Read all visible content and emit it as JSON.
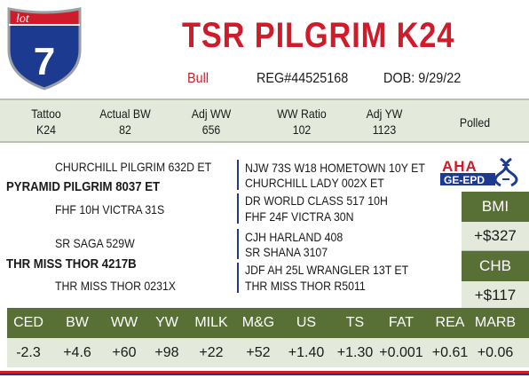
{
  "lot": {
    "label": "lot",
    "number": "7"
  },
  "header": {
    "title": "TSR PILGRIM K24",
    "sex": "Bull",
    "reg": "REG#44525168",
    "dob": "DOB: 9/29/22"
  },
  "info": {
    "tattoo_label": "Tattoo",
    "tattoo": "K24",
    "actual_bw_label": "Actual BW",
    "actual_bw": "82",
    "adj_ww_label": "Adj WW",
    "adj_ww": "656",
    "ww_ratio_label": "WW Ratio",
    "ww_ratio": "102",
    "adj_yw_label": "Adj YW",
    "adj_yw": "1123",
    "polled": "Polled"
  },
  "pedigree": {
    "sire": "PYRAMID PILGRIM 8037 ET",
    "sire_sire": "CHURCHILL PILGRIM 632D ET",
    "sire_dam": "FHF 10H VICTRA 31S",
    "sire_sire_sire": "NJW 73S W18 HOMETOWN 10Y ET",
    "sire_sire_dam": "CHURCHILL LADY 002X ET",
    "sire_dam_sire": "DR WORLD CLASS 517 10H",
    "sire_dam_dam": "FHF 24F VICTRA 30N",
    "dam": "THR MISS THOR 4217B",
    "dam_sire": "SR SAGA 529W",
    "dam_dam": "THR MISS THOR 0231X",
    "dam_sire_sire": "CJH HARLAND 408",
    "dam_sire_dam": "SR SHANA 3107",
    "dam_dam_sire": "JDF AH 25L WRANGLER 13T ET",
    "dam_dam_dam": "THR MISS THOR R5011"
  },
  "logo": {
    "top": "AHA",
    "bottom": "GE-EPD"
  },
  "indexes": {
    "bmi_label": "BMI",
    "bmi": "+$327",
    "chb_label": "CHB",
    "chb": "+$117"
  },
  "epd": {
    "headers": [
      "CED",
      "BW",
      "WW",
      "YW",
      "MILK",
      "M&G",
      "US",
      "TS",
      "FAT",
      "REA",
      "MARB"
    ],
    "values": [
      "-2.3",
      "+4.6",
      "+60",
      "+98",
      "+22",
      "+52",
      "+1.40",
      "+1.30",
      "+0.001",
      "+0.61",
      "+0.06"
    ]
  },
  "colors": {
    "red": "#d01b2a",
    "blue": "#1c3a8f",
    "green": "#587036",
    "light_green": "#e3eadb"
  }
}
